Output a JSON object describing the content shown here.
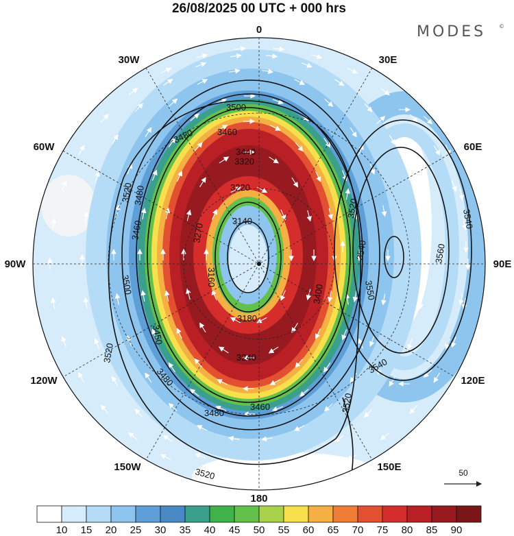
{
  "title": "26/08/2025  00 UTC  + 000 hrs",
  "brand": "MODES",
  "brand_mark": "©",
  "lon_labels": {
    "n": "0",
    "nne": "30E",
    "ene": "60E",
    "e": "90E",
    "ese": "120E",
    "sse": "150E",
    "s": "180",
    "ssw": "150W",
    "wsw": "120W",
    "w": "90W",
    "wnw": "60W",
    "nnw": "30W"
  },
  "contour_labels": {
    "c3500_top": "3500",
    "c3460_top": "3460",
    "c3440": "3440",
    "c3320": "3320",
    "c3220": "3220",
    "c3140": "3140",
    "c3160": "3160",
    "c3180": "3180",
    "c3240": "3240",
    "c3270": "3270",
    "c3400": "3400",
    "c3450": "3450",
    "c3480_left": "3480",
    "c3460_left": "3460",
    "c3500_left": "3500",
    "c3520_left": "3520",
    "c3520_upper": "3520",
    "c3480_bottom": "3480",
    "c3460_bottom": "3460",
    "c3520_bottom": "3520",
    "c3520_right": "3520",
    "c3540_east": "3540",
    "c3560": "3560",
    "c3540_se": "3540",
    "c3540_ne": "3540",
    "c3550": "3550",
    "c3520_mid": "3520"
  },
  "vector_scale": "50",
  "colorbar": {
    "ticks": [
      "10",
      "15",
      "20",
      "25",
      "30",
      "35",
      "40",
      "45",
      "50",
      "55",
      "60",
      "65",
      "70",
      "75",
      "80",
      "85",
      "90"
    ],
    "colors": [
      "#ffffff",
      "#d6ecfb",
      "#b5dcf6",
      "#8ec5ee",
      "#5f9fd8",
      "#4a8ac4",
      "#3aa08c",
      "#40b24a",
      "#62c04b",
      "#a8d24c",
      "#f7e04c",
      "#f5b044",
      "#ef7d37",
      "#e34f31",
      "#d42d2b",
      "#b91f24",
      "#961a1f",
      "#7a1518"
    ]
  }
}
